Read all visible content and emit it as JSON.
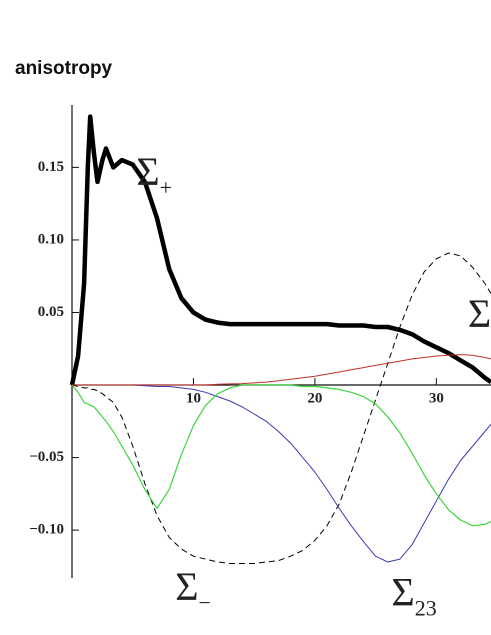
{
  "chart_data": {
    "type": "line",
    "title": "anisotropy",
    "x": [
      0,
      0.5,
      1,
      1.3,
      1.5,
      1.8,
      2.1,
      2.5,
      2.8,
      3.4,
      4.1,
      5,
      6,
      7,
      8,
      9,
      10,
      11,
      12,
      13,
      14,
      15,
      16,
      17,
      18,
      19,
      20,
      21,
      22,
      23,
      24,
      25,
      26,
      27,
      28,
      29,
      30,
      31,
      32,
      33,
      34,
      34.5
    ],
    "series": [
      {
        "color": "#000000",
        "line_width": 4.5,
        "dashed": false,
        "values": [
          0,
          0.02,
          0.07,
          0.15,
          0.185,
          0.16,
          0.14,
          0.155,
          0.163,
          0.15,
          0.155,
          0.152,
          0.14,
          0.115,
          0.08,
          0.06,
          0.05,
          0.045,
          0.043,
          0.042,
          0.042,
          0.042,
          0.042,
          0.042,
          0.042,
          0.042,
          0.042,
          0.042,
          0.041,
          0.041,
          0.041,
          0.04,
          0.04,
          0.038,
          0.035,
          0.03,
          0.026,
          0.022,
          0.017,
          0.012,
          0.005,
          0.002
        ]
      },
      {
        "color": "#000000",
        "line_width": 1,
        "dashed": true,
        "values": [
          0,
          -0.001,
          -0.002,
          -0.002,
          -0.003,
          -0.003,
          -0.004,
          -0.006,
          -0.008,
          -0.012,
          -0.022,
          -0.042,
          -0.068,
          -0.09,
          -0.105,
          -0.113,
          -0.118,
          -0.12,
          -0.122,
          -0.123,
          -0.123,
          -0.123,
          -0.122,
          -0.121,
          -0.118,
          -0.114,
          -0.107,
          -0.097,
          -0.082,
          -0.06,
          -0.035,
          -0.01,
          0.015,
          0.04,
          0.062,
          0.078,
          0.087,
          0.091,
          0.089,
          0.081,
          0.07,
          0.063
        ]
      },
      {
        "color": "#3b3bb0",
        "line_width": 1,
        "dashed": false,
        "values": [
          0,
          0,
          0,
          0,
          0,
          0,
          0,
          0,
          0,
          0,
          0,
          0,
          -0.0005,
          -0.001,
          -0.001,
          -0.002,
          -0.003,
          -0.005,
          -0.008,
          -0.011,
          -0.015,
          -0.02,
          -0.025,
          -0.032,
          -0.04,
          -0.05,
          -0.06,
          -0.072,
          -0.085,
          -0.097,
          -0.108,
          -0.118,
          -0.122,
          -0.12,
          -0.11,
          -0.095,
          -0.08,
          -0.065,
          -0.052,
          -0.042,
          -0.032,
          -0.027
        ]
      },
      {
        "color": "#3ed43e",
        "line_width": 1.2,
        "dashed": false,
        "values": [
          0,
          -0.005,
          -0.012,
          -0.013,
          -0.014,
          -0.015,
          -0.018,
          -0.022,
          -0.025,
          -0.032,
          -0.042,
          -0.055,
          -0.072,
          -0.085,
          -0.072,
          -0.048,
          -0.028,
          -0.014,
          -0.006,
          -0.002,
          0,
          0,
          0,
          0,
          0,
          -0.001,
          -0.001,
          -0.002,
          -0.003,
          -0.005,
          -0.008,
          -0.013,
          -0.022,
          -0.033,
          -0.047,
          -0.062,
          -0.075,
          -0.086,
          -0.093,
          -0.097,
          -0.096,
          -0.094
        ]
      },
      {
        "color": "#c0302a",
        "line_width": 1,
        "dashed": false,
        "values": [
          0,
          0,
          0,
          0,
          0,
          0,
          0,
          0,
          0,
          0,
          0,
          0,
          0,
          0,
          0,
          0,
          0,
          0,
          0.0005,
          0.0008,
          0.001,
          0.0015,
          0.002,
          0.003,
          0.004,
          0.005,
          0.006,
          0.0075,
          0.009,
          0.0105,
          0.012,
          0.0135,
          0.015,
          0.0165,
          0.018,
          0.019,
          0.02,
          0.0205,
          0.021,
          0.0205,
          0.019,
          0.018
        ]
      }
    ],
    "xlim": [
      0,
      34.5
    ],
    "xticks": [
      10,
      20,
      30
    ],
    "ylim": [
      -0.133,
      0.193
    ],
    "yticks": [
      {
        "value": -0.1,
        "label": "−0.10"
      },
      {
        "value": -0.05,
        "label": "−0.05"
      },
      0.05,
      {
        "value": 0.1,
        "label": "0.10"
      },
      0.15
    ],
    "annotations": [
      {
        "text": "Σ",
        "sub": "+",
        "x": 5.3,
        "y": 0.138
      },
      {
        "text": "Σ",
        "sub": "−",
        "x": 8.5,
        "y": -0.148
      },
      {
        "text": "Σ",
        "sub": "23",
        "x": 26.3,
        "y": -0.152
      },
      {
        "text": "Σ",
        "x": 32.6,
        "y": 0.04
      }
    ]
  }
}
